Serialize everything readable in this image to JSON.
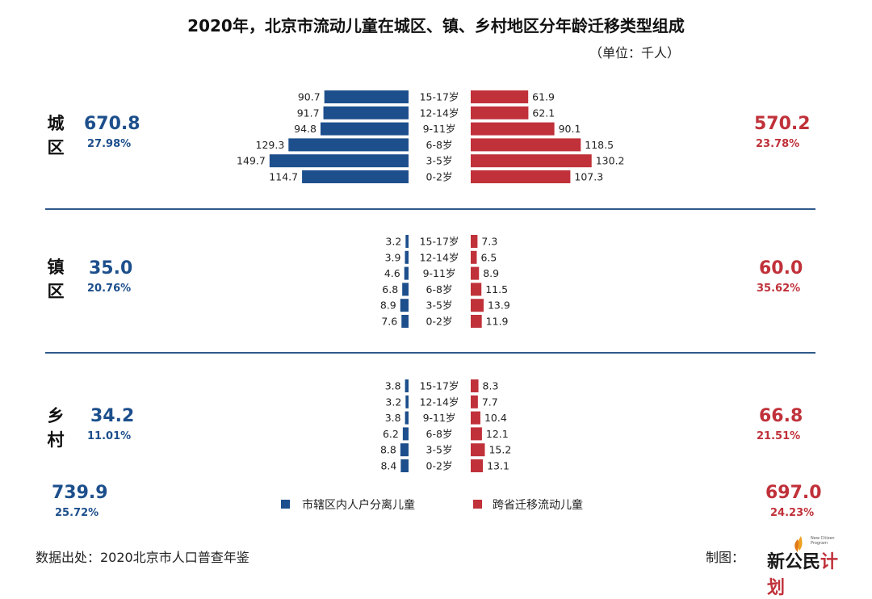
{
  "title": "2020年，北京市流动儿童在城区、镇、乡村地区分年龄迁移类型组成",
  "unit": "（单位：千人）",
  "colors": {
    "blue": "#1d4f8c",
    "red": "#c0313a",
    "separator": "#2f5a8a"
  },
  "chart_data": {
    "type": "bar",
    "orientation": "horizontal-butterfly",
    "series_names": [
      "市辖区内人户分离儿童",
      "跨省迁移流动儿童"
    ],
    "panels": [
      {
        "region_chars": [
          "城",
          "区"
        ],
        "left_total": "670.8",
        "left_pct": "27.98%",
        "right_total": "570.2",
        "right_pct": "23.78%",
        "ages": [
          "15-17岁",
          "12-14岁",
          "9-11岁",
          "6-8岁",
          "3-5岁",
          "0-2岁"
        ],
        "left": [
          90.7,
          91.7,
          94.8,
          129.3,
          149.7,
          114.7
        ],
        "right": [
          61.9,
          62.1,
          90.1,
          118.5,
          130.2,
          107.3
        ]
      },
      {
        "region_chars": [
          "镇",
          "区"
        ],
        "left_total": "35.0",
        "left_pct": "20.76%",
        "right_total": "60.0",
        "right_pct": "35.62%",
        "ages": [
          "15-17岁",
          "12-14岁",
          "9-11岁",
          "6-8岁",
          "3-5岁",
          "0-2岁"
        ],
        "left": [
          3.2,
          3.9,
          4.6,
          6.8,
          8.9,
          7.6
        ],
        "right": [
          7.3,
          6.5,
          8.9,
          11.5,
          13.9,
          11.9
        ]
      },
      {
        "region_chars": [
          "乡",
          "村"
        ],
        "left_total": "34.2",
        "left_pct": "11.01%",
        "right_total": "66.8",
        "right_pct": "21.51%",
        "ages": [
          "15-17岁",
          "12-14岁",
          "9-11岁",
          "6-8岁",
          "3-5岁",
          "0-2岁"
        ],
        "left": [
          3.8,
          3.2,
          3.8,
          6.2,
          8.8,
          8.4
        ],
        "right": [
          8.3,
          7.7,
          10.4,
          12.1,
          15.2,
          13.1
        ]
      }
    ]
  },
  "totals": {
    "left_total": "739.9",
    "left_pct": "25.72%",
    "right_total": "697.0",
    "right_pct": "24.23%"
  },
  "legend": {
    "blue_label": "市辖区内人户分离儿童",
    "red_label": "跨省迁移流动儿童"
  },
  "footer": {
    "source": "数据出处：2020北京市人口普查年鉴",
    "made_by": "制图：",
    "logo_main": "新公民",
    "logo_accent": "计划",
    "logo_small": "New Citizen Program"
  }
}
